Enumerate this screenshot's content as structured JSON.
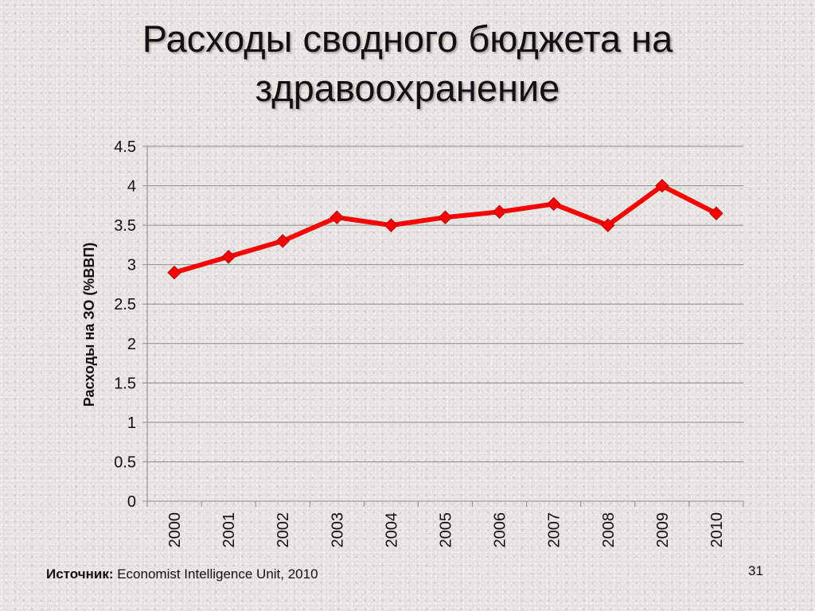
{
  "slide": {
    "title_line1": "Расходы сводного бюджета на",
    "title_line2": "здравоохранение",
    "source_label": "Источник:",
    "source_text": " Economist Intelligence Unit, 2010",
    "page_number": "31"
  },
  "chart_data": {
    "type": "line",
    "title": "",
    "xlabel": "",
    "ylabel": "Расходы на ЗО (%ВВП)",
    "categories": [
      "2000",
      "2001",
      "2002",
      "2003",
      "2004",
      "2005",
      "2006",
      "2007",
      "2008",
      "2009",
      "2010"
    ],
    "series": [
      {
        "values": [
          2.9,
          3.1,
          3.3,
          3.6,
          3.5,
          3.6,
          3.67,
          3.77,
          3.5,
          4.0,
          3.65
        ],
        "color": "#ff0000",
        "marker": "diamond"
      }
    ],
    "ylim": [
      0,
      4.5
    ],
    "yticks": [
      "0",
      "0.5",
      "1",
      "1.5",
      "2",
      "2.5",
      "3",
      "3.5",
      "4",
      "4.5"
    ],
    "grid": true,
    "legend": "none"
  }
}
